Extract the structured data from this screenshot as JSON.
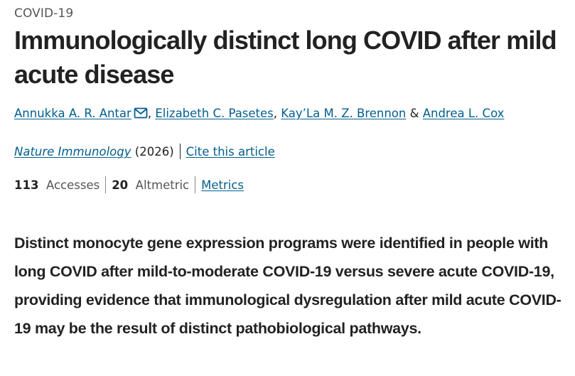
{
  "subject": "COVID-19",
  "title": "Immunologically distinct long COVID after mild acute disease",
  "authors": [
    {
      "name": "Annukka A. R. Antar",
      "has_email": true,
      "mail_icon": "mail-icon"
    },
    {
      "name": "Elizabeth C. Pasetes"
    },
    {
      "name": "Kay’La M. Z. Brennon"
    },
    {
      "name": "Andrea L. Cox"
    }
  ],
  "author_separator": ", ",
  "author_conjunction": " & ",
  "journal": {
    "name": "Nature Immunology",
    "year": "(2026)",
    "cite_label": "Cite this article"
  },
  "metrics": {
    "accesses_count": "113",
    "accesses_label": "Accesses",
    "altmetric_count": "20",
    "altmetric_label": "Altmetric",
    "metrics_link": "Metrics"
  },
  "summary": "Distinct monocyte gene expression programs were identified in people with long COVID after mild-to-moderate COVID-19 versus severe acute COVID-19, providing evidence that immunological dysregulation after mild acute COVID-19 may be the result of distinct pathobiological pathways.",
  "colors": {
    "link": "#025e8d",
    "text": "#222222",
    "muted": "#555555"
  }
}
